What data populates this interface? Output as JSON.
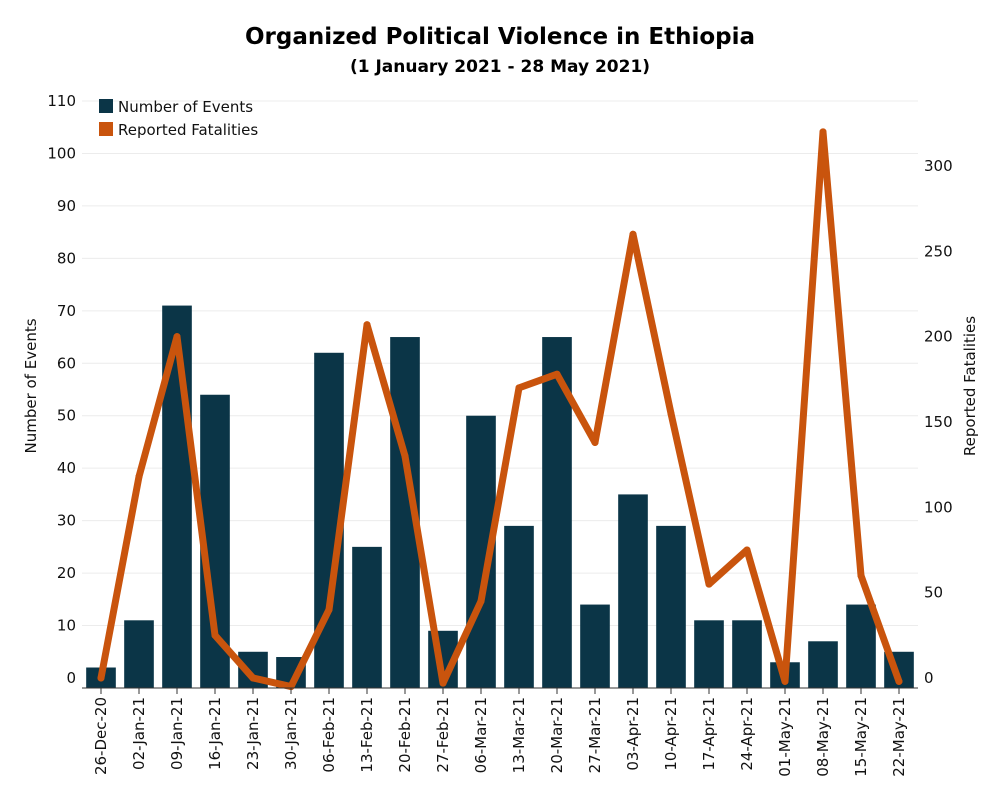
{
  "chart_data": {
    "type": "bar",
    "title": "Organized Political Violence in Ethiopia",
    "subtitle": "(1 January 2021 - 28 May 2021)",
    "ylabel": "Number of Events",
    "y2label": "Reported Fatalities",
    "ylim": [
      0,
      110
    ],
    "y2lim": [
      0,
      340
    ],
    "yticks": [
      0,
      10,
      20,
      30,
      40,
      50,
      60,
      70,
      80,
      90,
      100,
      110
    ],
    "y2ticks": [
      0,
      50,
      100,
      150,
      200,
      250,
      300
    ],
    "grid": true,
    "legend_position": "top-left",
    "categories": [
      "26-Dec-20",
      "02-Jan-21",
      "09-Jan-21",
      "16-Jan-21",
      "23-Jan-21",
      "30-Jan-21",
      "06-Feb-21",
      "13-Feb-21",
      "20-Feb-21",
      "27-Feb-21",
      "06-Mar-21",
      "13-Mar-21",
      "20-Mar-21",
      "27-Mar-21",
      "03-Apr-21",
      "10-Apr-21",
      "17-Apr-21",
      "24-Apr-21",
      "01-May-21",
      "08-May-21",
      "15-May-21",
      "22-May-21"
    ],
    "series": [
      {
        "name": "Number of Events",
        "type": "bar",
        "axis": "left",
        "color": "#0b3547",
        "values": [
          2,
          11,
          71,
          54,
          5,
          4,
          62,
          25,
          65,
          9,
          50,
          29,
          65,
          14,
          35,
          29,
          11,
          11,
          3,
          7,
          14,
          5
        ]
      },
      {
        "name": "Reported Fatalities",
        "type": "line",
        "axis": "right",
        "color": "#c9540d",
        "values": [
          0,
          118,
          200,
          25,
          0,
          -5,
          40,
          207,
          130,
          -3,
          45,
          170,
          178,
          138,
          260,
          155,
          55,
          75,
          -2,
          320,
          60,
          -2
        ]
      }
    ]
  }
}
